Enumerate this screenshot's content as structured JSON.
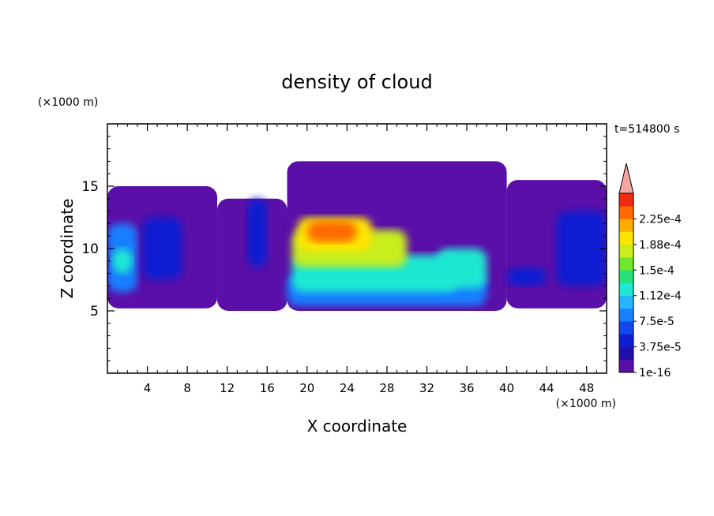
{
  "chart_data": {
    "type": "heatmap",
    "title": "density of cloud",
    "time_label": "t=514800 s",
    "xlabel": "X coordinate",
    "ylabel": "Z coordinate",
    "x_unit": "(×1000 m)",
    "y_unit": "(×1000 m)",
    "xlim": [
      0,
      50
    ],
    "ylim": [
      0,
      20
    ],
    "x_ticks": [
      4,
      8,
      12,
      16,
      20,
      24,
      28,
      32,
      36,
      40,
      44,
      48
    ],
    "y_ticks": [
      5,
      10,
      15
    ],
    "colorbar": {
      "levels": [
        1e-16,
        1.875e-05,
        3.75e-05,
        5.625e-05,
        7.5e-05,
        9.375e-05,
        0.0001125,
        0.00013125,
        0.00015,
        0.00016875,
        0.0001875,
        0.00020625,
        0.000225,
        0.00024375
      ],
      "labels": [
        "1e-16",
        "3.75e-5",
        "7.5e-5",
        "1.12e-4",
        "1.5e-4",
        "1.88e-4",
        "2.25e-4"
      ],
      "colors": [
        "#5a0fa8",
        "#1f0fa8",
        "#0e1fd0",
        "#1246ee",
        "#1880ff",
        "#26b4ff",
        "#1ee8d2",
        "#28e07a",
        "#6ee62a",
        "#c8ee1e",
        "#ffe400",
        "#ffac00",
        "#ff6a00",
        "#ee2a14"
      ],
      "extend_color": "#f4a4a0"
    },
    "regions": [
      {
        "x": [
          0.0,
          11.0
        ],
        "z": [
          5.2,
          15.0
        ],
        "value": 1e-16
      },
      {
        "x": [
          11.0,
          18.0
        ],
        "z": [
          5.0,
          14.0
        ],
        "value": 1e-16
      },
      {
        "x": [
          18.0,
          40.0
        ],
        "z": [
          5.0,
          17.0
        ],
        "value": 1e-16
      },
      {
        "x": [
          40.0,
          50.0
        ],
        "z": [
          5.2,
          15.5
        ],
        "value": 1e-16
      },
      {
        "x": [
          0.0,
          3.0
        ],
        "z": [
          6.5,
          12.0
        ],
        "value": 7.5e-05
      },
      {
        "x": [
          3.5,
          7.5
        ],
        "z": [
          7.5,
          12.5
        ],
        "value": 5.6e-05
      },
      {
        "x": [
          0.5,
          2.5
        ],
        "z": [
          8.0,
          10.0
        ],
        "value": 0.000131
      },
      {
        "x": [
          14.0,
          16.0
        ],
        "z": [
          8.5,
          14.0
        ],
        "value": 3.75e-05
      },
      {
        "x": [
          18.0,
          38.0
        ],
        "z": [
          5.4,
          8.0
        ],
        "value": 7.5e-05
      },
      {
        "x": [
          18.5,
          35.0
        ],
        "z": [
          6.5,
          9.5
        ],
        "value": 0.000131
      },
      {
        "x": [
          18.5,
          30.0
        ],
        "z": [
          8.5,
          11.5
        ],
        "value": 0.000169
      },
      {
        "x": [
          19.0,
          26.5
        ],
        "z": [
          9.8,
          12.5
        ],
        "value": 0.000206
      },
      {
        "x": [
          20.0,
          25.0
        ],
        "z": [
          10.5,
          12.2
        ],
        "value": 0.000225
      },
      {
        "x": [
          33.0,
          38.0
        ],
        "z": [
          6.8,
          10.0
        ],
        "value": 0.000131
      },
      {
        "x": [
          40.0,
          44.0
        ],
        "z": [
          7.0,
          8.5
        ],
        "value": 5.6e-05
      },
      {
        "x": [
          45.0,
          50.0
        ],
        "z": [
          7.0,
          13.0
        ],
        "value": 3.75e-05
      }
    ]
  }
}
